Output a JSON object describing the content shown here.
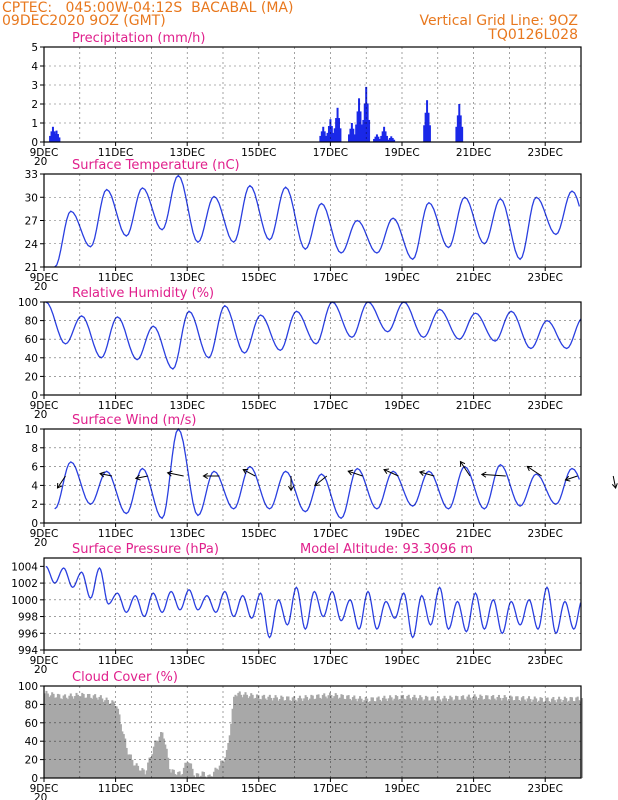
{
  "header": {
    "line1": "CPTEC:   045:00W-04:12S  BACABAL (MA)",
    "line2": "09DEC2020 9OZ (GMT)",
    "right1": "Vertical Grid Line: 9OZ",
    "right2": "TQ0126L028"
  },
  "x_tick_labels": [
    "9DEC",
    "11DEC",
    "13DEC",
    "15DEC",
    "17DEC",
    "19DEC",
    "21DEC",
    "23DEC"
  ],
  "panel_footer_label": "20",
  "chart_data": [
    {
      "type": "bar",
      "title": "Precipitation (mm/h)",
      "ylim": [
        0,
        5
      ],
      "yticks": [
        "0",
        "1",
        "2",
        "3",
        "4",
        "5"
      ],
      "x_unit": "days since 9DEC 00Z",
      "events": [
        {
          "x": 0.25,
          "y": 0.8
        },
        {
          "x": 0.35,
          "y": 0.6
        },
        {
          "x": 7.8,
          "y": 0.8
        },
        {
          "x": 8.0,
          "y": 1.2
        },
        {
          "x": 8.2,
          "y": 1.8
        },
        {
          "x": 8.6,
          "y": 1.0
        },
        {
          "x": 8.8,
          "y": 2.3
        },
        {
          "x": 9.0,
          "y": 2.9
        },
        {
          "x": 9.3,
          "y": 0.4
        },
        {
          "x": 9.5,
          "y": 0.8
        },
        {
          "x": 9.7,
          "y": 0.3
        },
        {
          "x": 10.7,
          "y": 2.2
        },
        {
          "x": 11.6,
          "y": 2.0
        }
      ]
    },
    {
      "type": "line",
      "title": "Surface Temperature (nC)",
      "ylim": [
        21,
        33
      ],
      "yticks": [
        "21",
        "24",
        "27",
        "30",
        "33"
      ],
      "period_days": 1,
      "daily_max": [
        28.2,
        31.0,
        31.2,
        32.8,
        30.1,
        31.5,
        31.3,
        29.2,
        27.0,
        27.3,
        29.3,
        30.0,
        29.8,
        30.0,
        30.8,
        29.8,
        31.5
      ],
      "daily_min": [
        21.0,
        23.6,
        25.0,
        25.8,
        24.2,
        24.2,
        24.5,
        23.3,
        22.8,
        22.8,
        22.0,
        23.5,
        24.0,
        22.0,
        25.2,
        24.4,
        24.0
      ]
    },
    {
      "type": "line",
      "title": "Relative Humidity (%)",
      "ylim": [
        0,
        100
      ],
      "yticks": [
        "0",
        "20",
        "40",
        "60",
        "80",
        "100"
      ],
      "period_days": 1,
      "daily_max": [
        100,
        85,
        84,
        74,
        90,
        96,
        86,
        90,
        100,
        100,
        100,
        92,
        88,
        90,
        80,
        83,
        84
      ],
      "daily_min": [
        55,
        40,
        38,
        28,
        40,
        45,
        48,
        55,
        62,
        68,
        62,
        60,
        58,
        50,
        50,
        48,
        45
      ]
    },
    {
      "type": "line",
      "title": "Surface Wind (m/s)",
      "ylim": [
        0,
        10
      ],
      "yticks": [
        "0",
        "2",
        "4",
        "6",
        "8",
        "10"
      ],
      "period_days": 1,
      "daily_max": [
        6.5,
        5.5,
        5.8,
        10.0,
        5.5,
        6.0,
        5.5,
        5.2,
        5.8,
        5.5,
        5.5,
        6.0,
        6.2,
        5.2,
        5.8,
        5.0,
        5.5
      ],
      "daily_min": [
        1.5,
        2.0,
        1.0,
        0.5,
        0.8,
        1.5,
        1.5,
        1.2,
        0.5,
        1.5,
        1.8,
        1.5,
        1.5,
        1.8,
        2.0,
        2.0,
        2.5
      ],
      "vectors": [
        {
          "x": 0.6,
          "u": -1.0,
          "v": -1.5
        },
        {
          "x": 1.9,
          "u": -1.5,
          "v": 0.3
        },
        {
          "x": 2.9,
          "u": -1.5,
          "v": -0.3
        },
        {
          "x": 3.9,
          "u": -2.0,
          "v": 0.4
        },
        {
          "x": 4.9,
          "u": -2.0,
          "v": 0.0
        },
        {
          "x": 5.9,
          "u": -1.5,
          "v": 0.8
        },
        {
          "x": 6.9,
          "u": 0.0,
          "v": -1.8
        },
        {
          "x": 7.9,
          "u": -1.5,
          "v": -1.2
        },
        {
          "x": 8.9,
          "u": -1.8,
          "v": 0.6
        },
        {
          "x": 9.9,
          "u": -1.8,
          "v": 0.8
        },
        {
          "x": 10.9,
          "u": -1.8,
          "v": 0.5
        },
        {
          "x": 11.9,
          "u": -1.2,
          "v": 1.8
        },
        {
          "x": 12.9,
          "u": -3.0,
          "v": 0.2
        },
        {
          "x": 13.9,
          "u": -1.8,
          "v": 1.2
        },
        {
          "x": 14.9,
          "u": -1.5,
          "v": -0.5
        },
        {
          "x": 15.9,
          "u": 0.3,
          "v": -1.5
        }
      ]
    },
    {
      "type": "line",
      "title": "Surface Pressure (hPa)",
      "annotation": "Model Altitude: 93.3096 m",
      "ylim": [
        994,
        1005
      ],
      "yticks": [
        "994",
        "996",
        "998",
        "1000",
        "1002",
        "1004"
      ],
      "period_days": 0.5,
      "half_day_max": [
        1004.0,
        1003.8,
        1003.3,
        1003.8,
        1000.8,
        1000.5,
        1000.8,
        1001.0,
        1001.2,
        1000.5,
        1001.0,
        1000.5,
        1000.8,
        1000.0,
        1001.5,
        1001.0,
        1001.0,
        1000.0,
        1001.0,
        999.8,
        1000.8,
        1000.5,
        1001.5,
        999.8,
        1000.8,
        1000.0,
        999.8,
        1000.0,
        1001.5,
        999.8,
        1000.2,
        999.0,
        999.8,
        999.0
      ],
      "half_day_min": [
        1002.0,
        1001.5,
        1000.2,
        999.5,
        998.5,
        998.0,
        998.5,
        998.8,
        998.8,
        998.5,
        998.0,
        997.8,
        995.5,
        997.0,
        996.5,
        998.0,
        997.5,
        996.5,
        996.5,
        997.8,
        995.5,
        997.0,
        996.5,
        996.2,
        996.5,
        996.0,
        997.0,
        996.5,
        996.0,
        996.5,
        996.0,
        995.5,
        996.0,
        994.0
      ]
    },
    {
      "type": "bar",
      "title": "Cloud Cover (%)",
      "ylim": [
        0,
        100
      ],
      "yticks": [
        "0",
        "20",
        "40",
        "60",
        "80",
        "100"
      ],
      "profile": [
        [
          0.0,
          92
        ],
        [
          0.5,
          88
        ],
        [
          1.0,
          90
        ],
        [
          1.5,
          88
        ],
        [
          2.0,
          80
        ],
        [
          2.3,
          30
        ],
        [
          2.5,
          15
        ],
        [
          2.8,
          6
        ],
        [
          3.1,
          40
        ],
        [
          3.3,
          50
        ],
        [
          3.5,
          8
        ],
        [
          3.8,
          4
        ],
        [
          4.0,
          20
        ],
        [
          4.2,
          2
        ],
        [
          4.4,
          5
        ],
        [
          4.6,
          1
        ],
        [
          4.8,
          10
        ],
        [
          5.0,
          20
        ],
        [
          5.1,
          30
        ],
        [
          5.3,
          92
        ],
        [
          6.0,
          88
        ],
        [
          7.0,
          86
        ],
        [
          8.0,
          90
        ],
        [
          9.0,
          85
        ],
        [
          10.0,
          88
        ],
        [
          11.0,
          86
        ],
        [
          12.0,
          88
        ],
        [
          13.0,
          87
        ],
        [
          14.0,
          85
        ],
        [
          15.0,
          86
        ],
        [
          16.0,
          88
        ],
        [
          16.5,
          86
        ]
      ]
    }
  ]
}
